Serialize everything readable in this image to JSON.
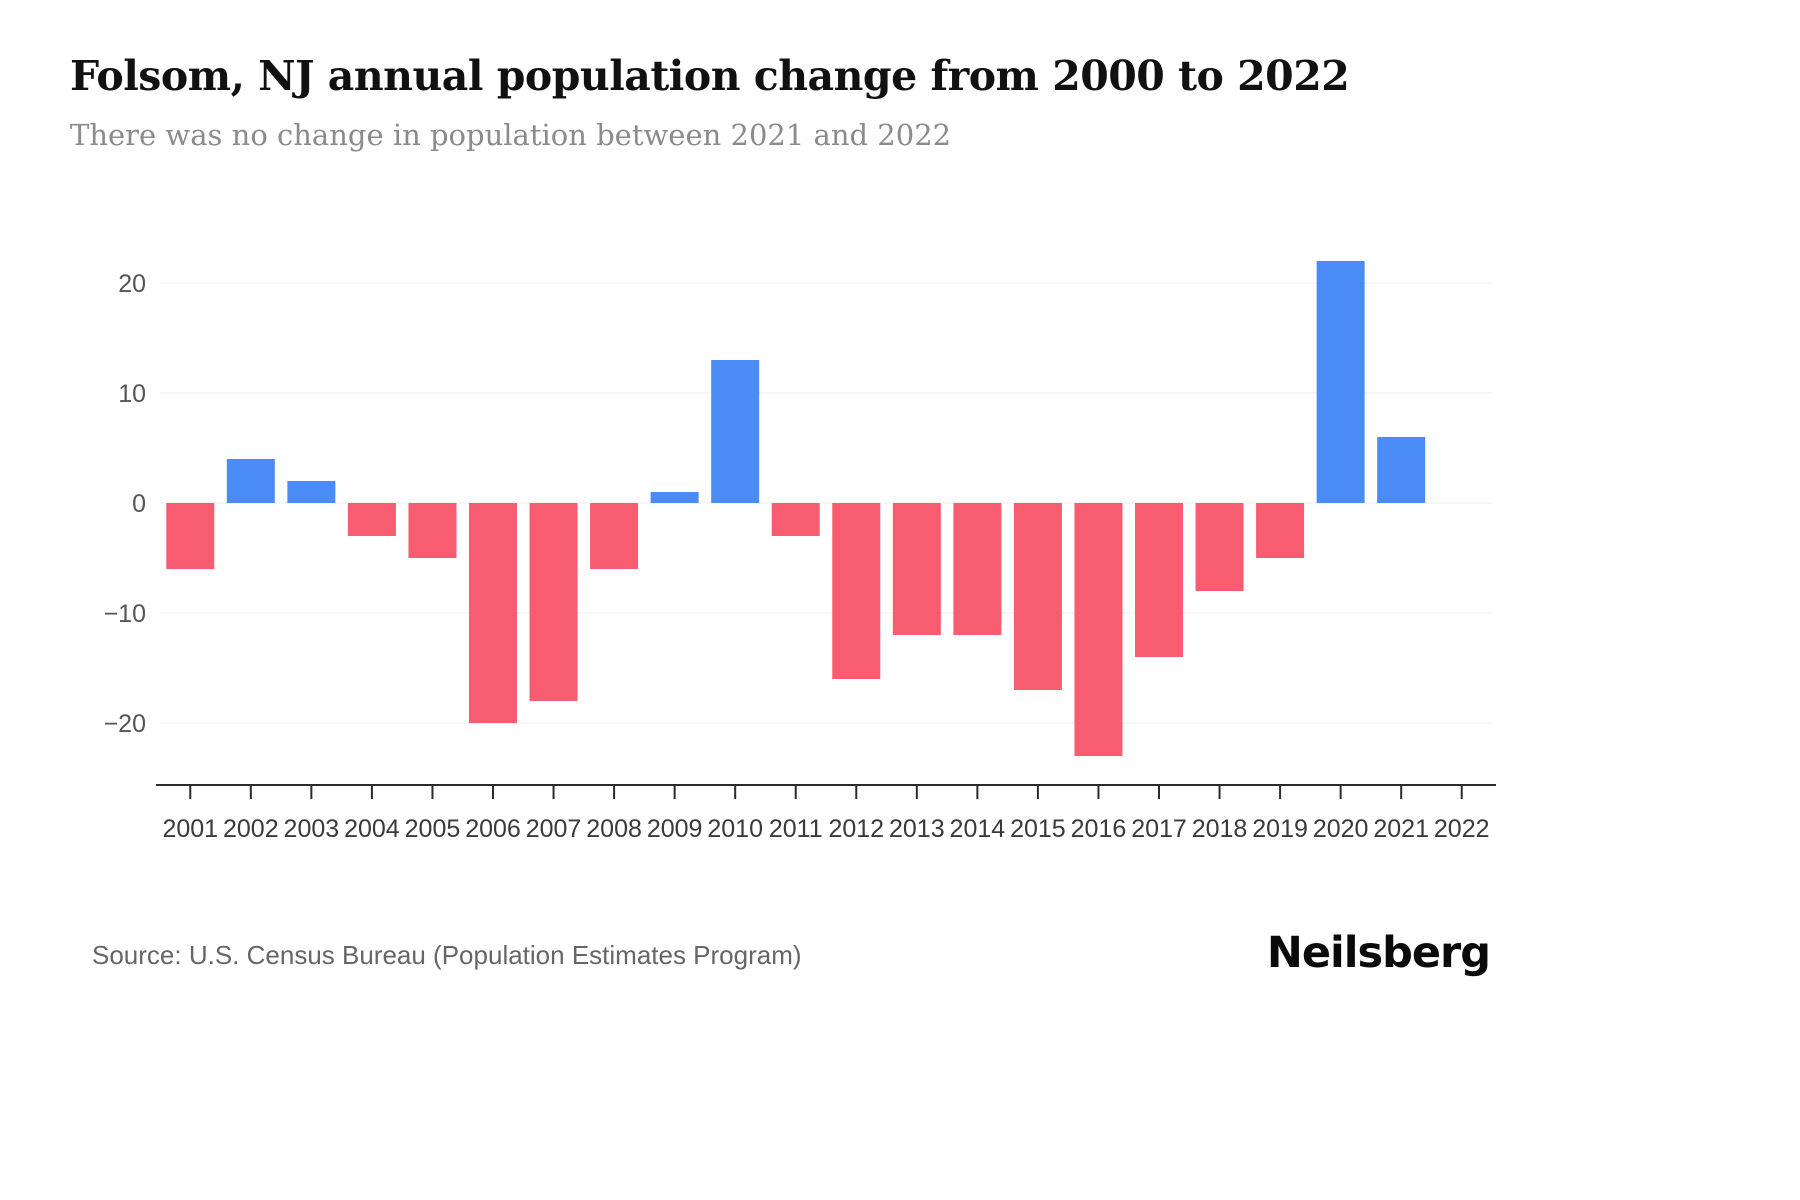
{
  "header": {
    "title": "Folsom, NJ annual population change from 2000 to 2022",
    "subtitle": "There was no change in population between 2021 and 2022"
  },
  "footer": {
    "source": "Source: U.S. Census Bureau (Population Estimates Program)",
    "brand": "Neilsberg"
  },
  "colors": {
    "background": "#ffffff",
    "grid_line": "#ececec",
    "axis_line": "#2b2b2b",
    "y_tick_label": "#555555",
    "x_tick_label": "#3a3a3a",
    "title_text": "#111111",
    "subtitle_text": "#8b8b8b",
    "source_text": "#666666",
    "positive_bar": "#4b8bf5",
    "negative_bar": "#f85c70"
  },
  "chart_data": {
    "type": "bar",
    "title": "Folsom, NJ annual population change from 2000 to 2022",
    "subtitle": "There was no change in population between 2021 and 2022",
    "categories": [
      "2001",
      "2002",
      "2003",
      "2004",
      "2005",
      "2006",
      "2007",
      "2008",
      "2009",
      "2010",
      "2011",
      "2012",
      "2013",
      "2014",
      "2015",
      "2016",
      "2017",
      "2018",
      "2019",
      "2020",
      "2021",
      "2022"
    ],
    "values": [
      -6,
      4,
      2,
      -3,
      -5,
      -20,
      -18,
      -6,
      1,
      13,
      -3,
      -16,
      -12,
      -12,
      -17,
      -23,
      -14,
      -8,
      -5,
      22,
      6,
      0
    ],
    "xlabel": "",
    "ylabel": "",
    "ylim": [
      -26,
      24
    ],
    "yticks": [
      20,
      10,
      0,
      -10,
      -20
    ],
    "ytick_labels": [
      "20",
      "10",
      "0",
      "−10",
      "−20"
    ],
    "grid": "horizontal",
    "legend": "none",
    "positive_color": "#4b8bf5",
    "negative_color": "#f85c70"
  }
}
